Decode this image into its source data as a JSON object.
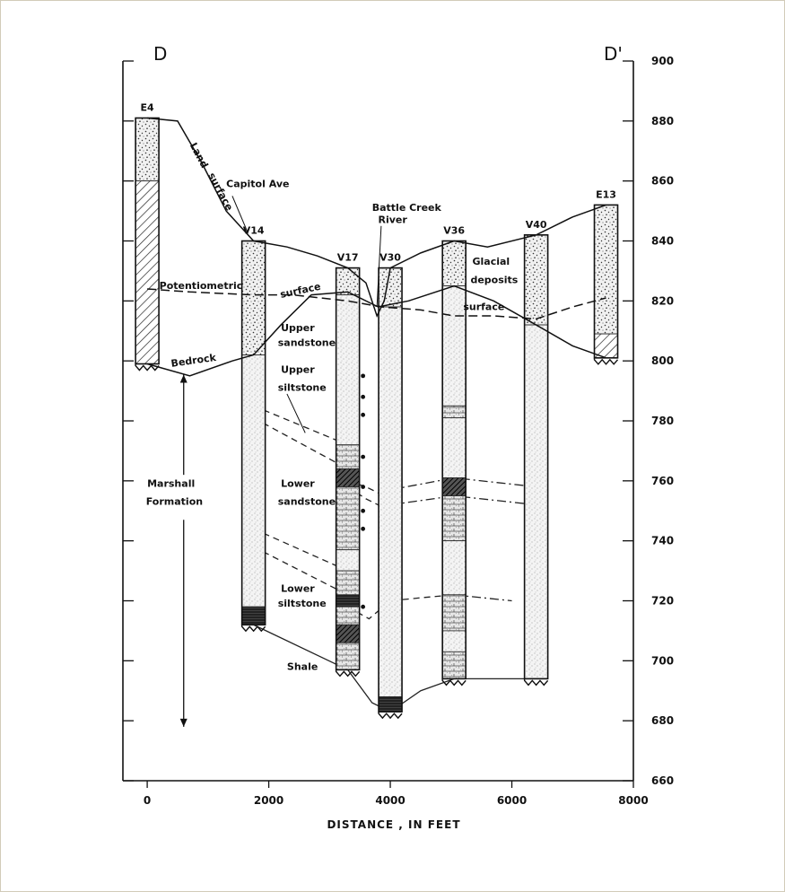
{
  "section": {
    "left_label": "D",
    "right_label": "D'"
  },
  "x_axis": {
    "title": "DISTANCE , IN FEET",
    "range": [
      -400,
      8000
    ],
    "ticks": [
      {
        "value": 0,
        "label": "0"
      },
      {
        "value": 2000,
        "label": "2000"
      },
      {
        "value": 4000,
        "label": "4000"
      },
      {
        "value": 6000,
        "label": "6000"
      },
      {
        "value": 8000,
        "label": "8000"
      }
    ]
  },
  "y_axis": {
    "range": [
      660,
      900
    ],
    "ticks": [
      {
        "value": 660,
        "label": "660"
      },
      {
        "value": 680,
        "label": "680"
      },
      {
        "value": 700,
        "label": "700"
      },
      {
        "value": 720,
        "label": "720"
      },
      {
        "value": 740,
        "label": "740"
      },
      {
        "value": 760,
        "label": "760"
      },
      {
        "value": 780,
        "label": "780"
      },
      {
        "value": 800,
        "label": "800"
      },
      {
        "value": 820,
        "label": "820"
      },
      {
        "value": 840,
        "label": "840"
      },
      {
        "value": 860,
        "label": "860"
      },
      {
        "value": 880,
        "label": "880"
      },
      {
        "value": 900,
        "label": "900"
      }
    ]
  },
  "wells": [
    {
      "id": "E4",
      "label": "E4",
      "x": 0,
      "top": 881,
      "bottom": 799,
      "units": [
        {
          "from": 881,
          "to": 860,
          "type": "glacial"
        },
        {
          "from": 860,
          "to": 799,
          "type": "hatch"
        }
      ]
    },
    {
      "id": "V14",
      "label": "V14",
      "x": 1750,
      "top": 840,
      "bottom": 712,
      "units": [
        {
          "from": 840,
          "to": 802,
          "type": "glacial"
        },
        {
          "from": 802,
          "to": 718,
          "type": "sandstone"
        },
        {
          "from": 718,
          "to": 712,
          "type": "shale"
        }
      ]
    },
    {
      "id": "V17",
      "label": "V17",
      "x": 3300,
      "top": 831,
      "bottom": 697,
      "units": [
        {
          "from": 831,
          "to": 822,
          "type": "glacial"
        },
        {
          "from": 822,
          "to": 772,
          "type": "sandstone"
        },
        {
          "from": 772,
          "to": 764,
          "type": "siltstone"
        },
        {
          "from": 764,
          "to": 758,
          "type": "hatch-dark"
        },
        {
          "from": 758,
          "to": 737,
          "type": "siltstone"
        },
        {
          "from": 737,
          "to": 730,
          "type": "sandstone"
        },
        {
          "from": 730,
          "to": 722,
          "type": "siltstone"
        },
        {
          "from": 722,
          "to": 718,
          "type": "shale"
        },
        {
          "from": 718,
          "to": 712,
          "type": "siltstone"
        },
        {
          "from": 712,
          "to": 706,
          "type": "hatch-dark"
        },
        {
          "from": 706,
          "to": 697,
          "type": "siltstone"
        }
      ]
    },
    {
      "id": "V30",
      "label": "V30",
      "x": 4000,
      "top": 831,
      "bottom": 683,
      "units": [
        {
          "from": 831,
          "to": 818,
          "type": "glacial"
        },
        {
          "from": 818,
          "to": 688,
          "type": "sandstone"
        },
        {
          "from": 688,
          "to": 683,
          "type": "shale"
        }
      ]
    },
    {
      "id": "V36",
      "label": "V36",
      "x": 5050,
      "top": 840,
      "bottom": 694,
      "units": [
        {
          "from": 840,
          "to": 825,
          "type": "glacial"
        },
        {
          "from": 825,
          "to": 785,
          "type": "sandstone"
        },
        {
          "from": 785,
          "to": 781,
          "type": "siltstone"
        },
        {
          "from": 781,
          "to": 761,
          "type": "sandstone"
        },
        {
          "from": 761,
          "to": 755,
          "type": "hatch-dark"
        },
        {
          "from": 755,
          "to": 740,
          "type": "siltstone"
        },
        {
          "from": 740,
          "to": 722,
          "type": "sandstone"
        },
        {
          "from": 722,
          "to": 710,
          "type": "siltstone"
        },
        {
          "from": 710,
          "to": 703,
          "type": "sandstone"
        },
        {
          "from": 703,
          "to": 694,
          "type": "siltstone"
        }
      ]
    },
    {
      "id": "V40",
      "label": "V40",
      "x": 6400,
      "top": 842,
      "bottom": 694,
      "units": [
        {
          "from": 842,
          "to": 812,
          "type": "glacial"
        },
        {
          "from": 812,
          "to": 694,
          "type": "sandstone"
        }
      ]
    },
    {
      "id": "E13",
      "label": "E13",
      "x": 7550,
      "top": 852,
      "bottom": 801,
      "units": [
        {
          "from": 852,
          "to": 809,
          "type": "glacial"
        },
        {
          "from": 809,
          "to": 801,
          "type": "hatch"
        }
      ]
    }
  ],
  "surfaces": [
    {
      "name": "land-surface",
      "style": "solid",
      "points": [
        [
          0,
          881
        ],
        [
          500,
          880
        ],
        [
          900,
          866
        ],
        [
          1300,
          850
        ],
        [
          1750,
          840
        ],
        [
          2300,
          838
        ],
        [
          2800,
          835
        ],
        [
          3300,
          831
        ],
        [
          3600,
          826
        ],
        [
          3780,
          815
        ],
        [
          3900,
          820
        ],
        [
          4000,
          831
        ],
        [
          4500,
          836
        ],
        [
          5050,
          840
        ],
        [
          5600,
          838
        ],
        [
          6400,
          842
        ],
        [
          7000,
          848
        ],
        [
          7550,
          852
        ]
      ]
    },
    {
      "name": "bedrock-surface",
      "style": "solid",
      "points": [
        [
          0,
          799
        ],
        [
          700,
          795
        ],
        [
          1400,
          800
        ],
        [
          1750,
          802
        ],
        [
          2200,
          812
        ],
        [
          2700,
          822
        ],
        [
          3300,
          823
        ],
        [
          3800,
          818
        ],
        [
          4300,
          820
        ],
        [
          5050,
          825
        ],
        [
          5700,
          820
        ],
        [
          6400,
          812
        ],
        [
          7000,
          805
        ],
        [
          7550,
          801
        ]
      ]
    },
    {
      "name": "potentiometric-surface",
      "style": "dashed",
      "points": [
        [
          0,
          824
        ],
        [
          700,
          823
        ],
        [
          1750,
          822
        ],
        [
          2400,
          822
        ],
        [
          3300,
          820
        ],
        [
          3850,
          818
        ],
        [
          4500,
          817
        ],
        [
          5050,
          815
        ],
        [
          5700,
          815
        ],
        [
          6400,
          814
        ],
        [
          7000,
          818
        ],
        [
          7550,
          821
        ]
      ]
    }
  ],
  "correlations": [
    {
      "points": [
        [
          1750,
          785
        ],
        [
          3300,
          772
        ]
      ],
      "style": "dashed"
    },
    {
      "points": [
        [
          1750,
          781
        ],
        [
          3300,
          764
        ]
      ],
      "style": "dashed"
    },
    {
      "points": [
        [
          3300,
          760
        ],
        [
          3600,
          758
        ],
        [
          4000,
          754
        ]
      ],
      "style": "dashed"
    },
    {
      "points": [
        [
          3300,
          758
        ],
        [
          3600,
          754
        ],
        [
          4000,
          750
        ]
      ],
      "style": "dashed"
    },
    {
      "points": [
        [
          4000,
          757
        ],
        [
          5050,
          761
        ],
        [
          6400,
          758
        ]
      ],
      "style": "dashdot"
    },
    {
      "points": [
        [
          4000,
          752
        ],
        [
          5050,
          755
        ],
        [
          6400,
          752
        ]
      ],
      "style": "dashdot"
    },
    {
      "points": [
        [
          1750,
          744
        ],
        [
          3300,
          730
        ]
      ],
      "style": "dashed"
    },
    {
      "points": [
        [
          1750,
          738
        ],
        [
          3300,
          722
        ]
      ],
      "style": "dashed"
    },
    {
      "points": [
        [
          3300,
          718
        ],
        [
          3650,
          714
        ],
        [
          4000,
          720
        ],
        [
          4500,
          721
        ],
        [
          5050,
          722
        ]
      ],
      "style": "dashed"
    },
    {
      "points": [
        [
          5050,
          722
        ],
        [
          6000,
          720
        ]
      ],
      "style": "dashdot"
    },
    {
      "points": [
        [
          1750,
          712
        ],
        [
          3300,
          697
        ]
      ],
      "style": "solid"
    },
    {
      "points": [
        [
          3300,
          697
        ],
        [
          3700,
          686
        ],
        [
          4000,
          683
        ]
      ],
      "style": "solid"
    },
    {
      "points": [
        [
          4000,
          683
        ],
        [
          4500,
          690
        ],
        [
          5050,
          694
        ],
        [
          6400,
          694
        ]
      ],
      "style": "solid"
    }
  ],
  "labels": [
    {
      "id": "land-surface-label",
      "text": "Land",
      "x": 700,
      "y": 872,
      "rotate": 62
    },
    {
      "id": "land-surface-label-2",
      "text": "surface",
      "x": 1000,
      "y": 862,
      "rotate": 62
    },
    {
      "id": "capitol-ave-label",
      "text": "Capitol Ave",
      "x": 1300,
      "y": 858,
      "rotate": 0
    },
    {
      "id": "battle-creek-label",
      "text": "Battle Creek",
      "x": 3700,
      "y": 850,
      "rotate": 0
    },
    {
      "id": "river-label",
      "text": "River",
      "x": 3800,
      "y": 846,
      "rotate": 0
    },
    {
      "id": "glacial-deposits-label",
      "text": "Glacial",
      "x": 5350,
      "y": 832,
      "rotate": 0
    },
    {
      "id": "glacial-deposits-label-2",
      "text": "deposits",
      "x": 5320,
      "y": 826,
      "rotate": 0
    },
    {
      "id": "potentiometric-label",
      "text": "Potentiometric",
      "x": 200,
      "y": 824,
      "rotate": 0
    },
    {
      "id": "potentiometric-surface-label",
      "text": "surface",
      "x": 2200,
      "y": 821,
      "rotate": -12
    },
    {
      "id": "surface-right-label",
      "text": "surface",
      "x": 5200,
      "y": 817,
      "rotate": 0
    },
    {
      "id": "upper-sandstone-label",
      "text": "Upper",
      "x": 2200,
      "y": 810,
      "rotate": 0
    },
    {
      "id": "upper-sandstone-label-2",
      "text": "sandstone",
      "x": 2150,
      "y": 805,
      "rotate": 0
    },
    {
      "id": "bedrock-label",
      "text": "Bedrock",
      "x": 400,
      "y": 798,
      "rotate": -8
    },
    {
      "id": "upper-siltstone-label",
      "text": "Upper",
      "x": 2200,
      "y": 796,
      "rotate": 0
    },
    {
      "id": "upper-siltstone-label-2",
      "text": "siltstone",
      "x": 2150,
      "y": 790,
      "rotate": 0
    },
    {
      "id": "lower-sandstone-label",
      "text": "Lower",
      "x": 2200,
      "y": 758,
      "rotate": 0
    },
    {
      "id": "lower-sandstone-label-2",
      "text": "sandstone",
      "x": 2150,
      "y": 752,
      "rotate": 0
    },
    {
      "id": "marshall-label",
      "text": "Marshall",
      "x": 0,
      "y": 758,
      "rotate": 0
    },
    {
      "id": "marshall-label-2",
      "text": "Formation",
      "x": -20,
      "y": 752,
      "rotate": 0
    },
    {
      "id": "lower-siltstone-label",
      "text": "Lower",
      "x": 2200,
      "y": 723,
      "rotate": 0
    },
    {
      "id": "lower-siltstone-label-2",
      "text": "siltstone",
      "x": 2150,
      "y": 718,
      "rotate": 0
    },
    {
      "id": "shale-label",
      "text": "Shale",
      "x": 2300,
      "y": 697,
      "rotate": 0
    }
  ],
  "marshall_range": [
    799,
    678
  ]
}
